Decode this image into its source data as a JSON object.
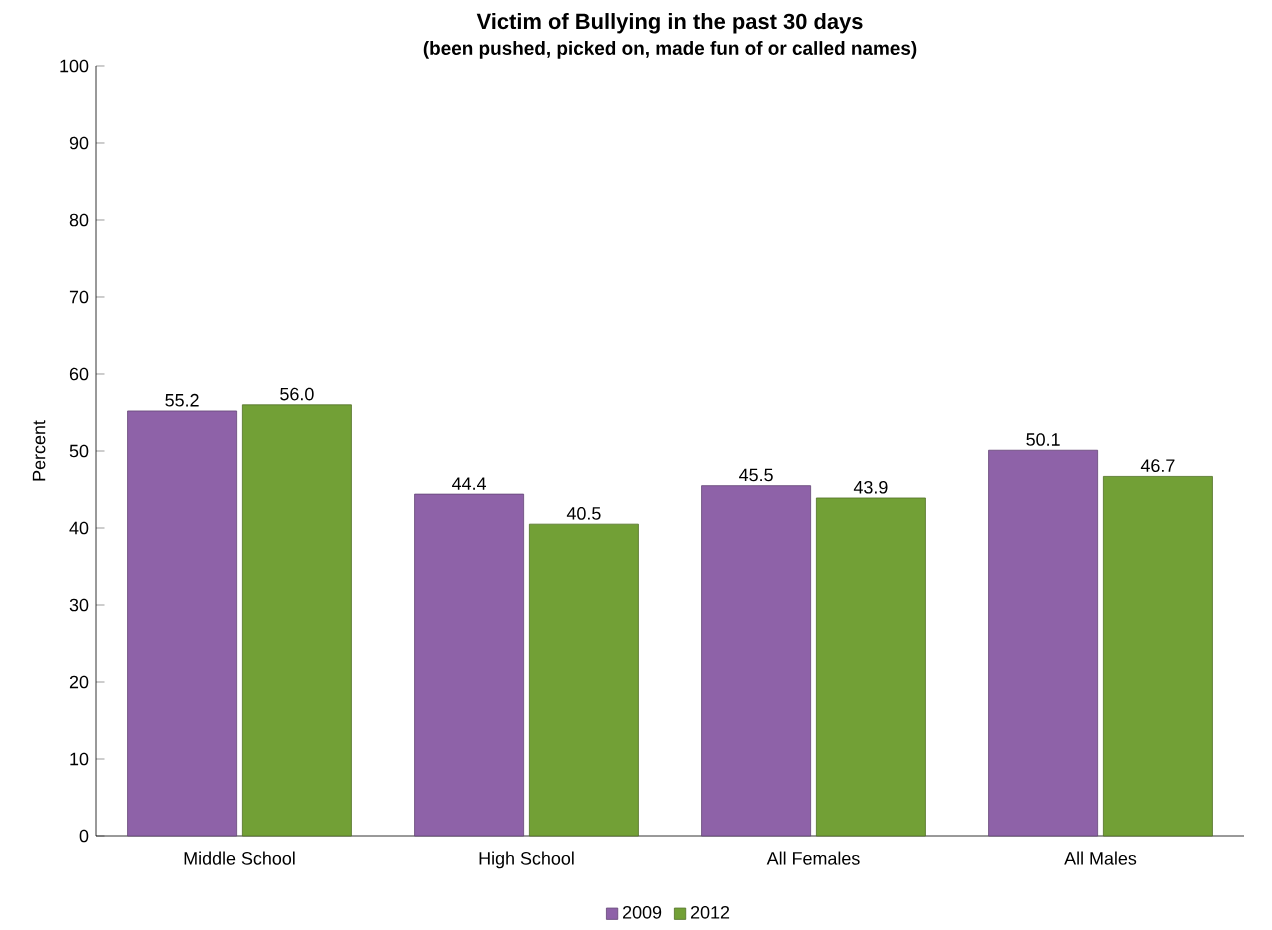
{
  "chart_data": {
    "type": "bar",
    "title": "Victim of Bullying in the past 30 days",
    "subtitle": "(been pushed, picked on, made fun of or called names)",
    "ylabel": "Percent",
    "categories": [
      "Middle School",
      "High School",
      "All Females",
      "All Males"
    ],
    "series": [
      {
        "name": "2009",
        "color": "#8e62a8",
        "values": [
          55.2,
          44.4,
          45.5,
          50.1
        ],
        "value_labels": [
          "55.2",
          "44.4",
          "45.5",
          "50.1"
        ]
      },
      {
        "name": "2012",
        "color": "#72a036",
        "values": [
          56.0,
          40.5,
          43.9,
          46.7
        ],
        "value_labels": [
          "56.0",
          "40.5",
          "43.9",
          "46.7"
        ]
      }
    ],
    "ylim": [
      0,
      100
    ],
    "yticks": [
      0,
      10,
      20,
      30,
      40,
      50,
      60,
      70,
      80,
      90,
      100
    ],
    "legend": "bottom",
    "grid": false
  }
}
